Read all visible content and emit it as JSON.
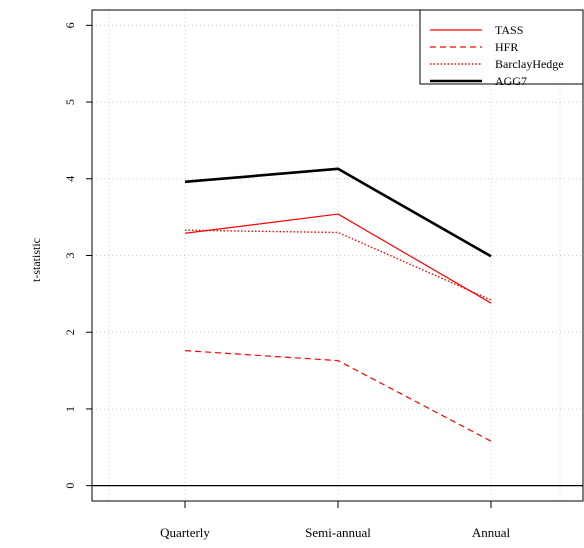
{
  "chart_data": {
    "type": "line",
    "title": "",
    "xlabel": "",
    "ylabel": "t-statistic",
    "categories": [
      "Quarterly",
      "Semi-annual",
      "Annual"
    ],
    "ylim": [
      -0.2,
      6.2
    ],
    "y_ticks": [
      0,
      1,
      2,
      3,
      4,
      5,
      6
    ],
    "y_tick_labels": [
      "0",
      "1",
      "2",
      "3",
      "4",
      "5",
      "6"
    ],
    "grid": true,
    "legend_position": "top-right",
    "series": [
      {
        "name": "TASS",
        "values": [
          3.29,
          3.54,
          2.38
        ],
        "color": "#ff0000",
        "line_style": "solid",
        "line_width": 1.2
      },
      {
        "name": "HFR",
        "values": [
          1.76,
          1.63,
          0.58
        ],
        "color": "#ff0000",
        "line_style": "dashed",
        "line_width": 1.2
      },
      {
        "name": "BarclayHedge",
        "values": [
          3.33,
          3.3,
          2.42
        ],
        "color": "#ff0000",
        "line_style": "dotted",
        "line_width": 1.4
      },
      {
        "name": "AGG7",
        "values": [
          3.96,
          4.13,
          2.99
        ],
        "color": "#000000",
        "line_style": "solid",
        "line_width": 2.6
      }
    ]
  }
}
